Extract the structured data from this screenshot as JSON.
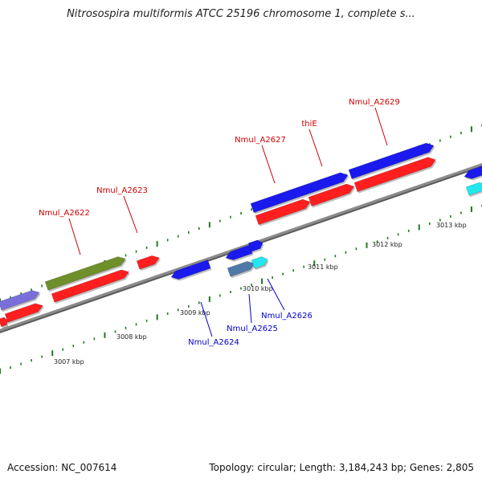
{
  "title": "Nitrosospira multiformis ATCC 25196 chromosome 1, complete s...",
  "footer": {
    "accession": "Accession: NC_007614",
    "topology": "Topology: circular; Length: 3,184,243 bp; Genes: 2,805"
  },
  "colors": {
    "backbone": "#8c8c8c",
    "tick": "#1f7a1f",
    "red": "#ff1f1f",
    "blue": "#1a1aee",
    "olive": "#6f8f2a",
    "slate": "#4f7aa8",
    "lavender": "#7a6fd8",
    "cyan": "#22e8ee",
    "label_top": "#cc0000",
    "label_bottom": "#0000cc"
  },
  "kbp_labels": [
    "3007 kbp",
    "3008 kbp",
    "3009 kbp",
    "3010 kbp",
    "3011 kbp",
    "3012 kbp",
    "3013 kbp"
  ],
  "gene_labels": {
    "top": [
      "Nmul_A2622",
      "Nmul_A2623",
      "Nmul_A2627",
      "thiE",
      "Nmul_A2629"
    ],
    "bottom": [
      "Nmul_A2624",
      "Nmul_A2625",
      "Nmul_A2626"
    ]
  }
}
